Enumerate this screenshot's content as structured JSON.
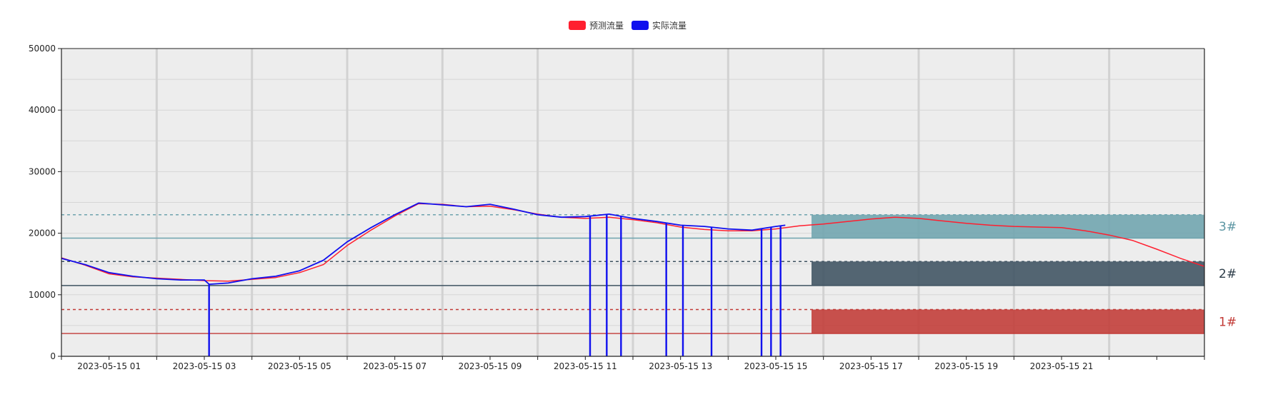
{
  "chart_data": {
    "type": "line",
    "title": "",
    "xlabel": "",
    "ylabel": "",
    "ylim": [
      0,
      50000
    ],
    "yticks": [
      0,
      10000,
      20000,
      30000,
      40000,
      50000
    ],
    "x_range": [
      "2023-05-15 00:00",
      "2023-05-16 00:00"
    ],
    "x_tick_labels": [
      "2023-05-15 01",
      "2023-05-15 03",
      "2023-05-15 05",
      "2023-05-15 07",
      "2023-05-15 09",
      "2023-05-15 11",
      "2023-05-15 13",
      "2023-05-15 15",
      "2023-05-15 17",
      "2023-05-15 19",
      "2023-05-15 21"
    ],
    "grid": true,
    "legend_position": "top-center",
    "legend": [
      {
        "name": "预测流量",
        "color": "#ff1f2f"
      },
      {
        "name": "实际流量",
        "color": "#1010ee"
      }
    ],
    "series": [
      {
        "name": "预测流量",
        "color": "#ff1f2f",
        "x_hours": [
          0,
          0.5,
          1,
          1.5,
          2,
          2.5,
          3,
          3.5,
          4,
          4.5,
          5,
          5.5,
          6,
          6.5,
          7,
          7.5,
          8,
          8.5,
          9,
          9.5,
          10,
          10.5,
          11,
          11.5,
          12,
          12.5,
          13,
          13.5,
          14,
          14.5,
          15,
          15.5,
          16,
          16.5,
          17,
          17.5,
          18,
          18.5,
          19,
          19.5,
          20,
          20.5,
          21,
          21.5,
          22,
          22.5,
          23,
          23.5,
          24
        ],
        "values": [
          16000,
          14800,
          13400,
          12900,
          12700,
          12500,
          12300,
          12200,
          12500,
          12800,
          13600,
          14900,
          18000,
          20500,
          22800,
          24800,
          24700,
          24300,
          24400,
          23800,
          23100,
          22600,
          22400,
          22600,
          22200,
          21700,
          21000,
          20600,
          20400,
          20400,
          20700,
          21200,
          21500,
          21900,
          22300,
          22600,
          22400,
          22000,
          21600,
          21300,
          21100,
          21000,
          20900,
          20400,
          19700,
          18800,
          17400,
          15900,
          14600
        ]
      },
      {
        "name": "实际流量",
        "color": "#1010ee",
        "x_hours": [
          0,
          0.5,
          1,
          1.5,
          2,
          2.5,
          3,
          3.1,
          3.5,
          4,
          4.5,
          5,
          5.5,
          6,
          6.5,
          7,
          7.5,
          8,
          8.5,
          9,
          9.5,
          10,
          10.5,
          11,
          11.5,
          12,
          12.5,
          13,
          13.5,
          14,
          14.5,
          15,
          15.2
        ],
        "values": [
          15900,
          14900,
          13600,
          13000,
          12600,
          12400,
          12400,
          11700,
          11900,
          12600,
          13000,
          13900,
          15600,
          18600,
          20900,
          23000,
          24900,
          24600,
          24300,
          24700,
          23900,
          23000,
          22600,
          22700,
          23100,
          22400,
          21900,
          21300,
          21100,
          20700,
          20500,
          21100,
          21300
        ],
        "dropouts_hours": [
          3.1,
          11.1,
          11.45,
          11.75,
          12.7,
          13.05,
          13.65,
          14.7,
          14.9,
          15.1
        ],
        "dropout_value": 0
      }
    ],
    "bands": [
      {
        "label": "3#",
        "color": "#6ea4ae",
        "label_color": "#5c96a3",
        "solid_line": 19200,
        "dashed_line": 23000,
        "band_low": 19200,
        "band_high": 23000,
        "band_start_hour": 15.75
      },
      {
        "label": "2#",
        "color": "#3e5261",
        "label_color": "#2e3e4a",
        "solid_line": 11500,
        "dashed_line": 15400,
        "band_low": 11500,
        "band_high": 15400,
        "band_start_hour": 15.75
      },
      {
        "label": "1#",
        "color": "#c23a36",
        "label_color": "#c23a36",
        "solid_line": 3700,
        "dashed_line": 7600,
        "band_low": 3700,
        "band_high": 7600,
        "band_start_hour": 15.75
      }
    ]
  }
}
